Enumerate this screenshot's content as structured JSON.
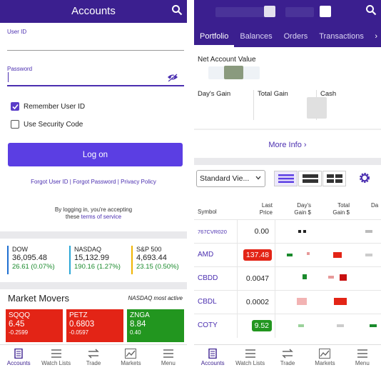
{
  "login_screen": {
    "title": "Accounts",
    "user_id_label": "User ID",
    "password_label": "Password",
    "remember_label": "Remember User ID",
    "remember_checked": true,
    "security_label": "Use Security Code",
    "security_checked": false,
    "login_button": "Log on",
    "forgot_user": "Forgot User ID",
    "forgot_password": "Forgot Password",
    "privacy_policy": "Privacy Policy",
    "link_sep": " | ",
    "terms_line1": "By logging in, you're accepting",
    "terms_prefix": "these ",
    "terms_link": "terms of service",
    "indices": [
      {
        "name": "DOW",
        "value": "36,095.48",
        "change": "26.61 (0.07%)",
        "color": "#1f6fd1"
      },
      {
        "name": "NASDAQ",
        "value": "15,132.99",
        "change": "190.16 (1.27%)",
        "color": "#2aa6d6"
      },
      {
        "name": "S&P 500",
        "value": "4,693.44",
        "change": "23.15 (0.50%)",
        "color": "#f0b400"
      }
    ],
    "market_movers_title": "Market Movers",
    "market_movers_sub": "NASDAQ most active",
    "movers": [
      {
        "symbol": "SQQQ",
        "price": "6.45",
        "change": "-0.2599",
        "color": "#e32416"
      },
      {
        "symbol": "PETZ",
        "price": "0.6803",
        "change": "-0.0597",
        "color": "#e32416"
      },
      {
        "symbol": "ZNGA",
        "price": "8.84",
        "change": "0.40",
        "color": "#22961f"
      }
    ]
  },
  "nav": [
    {
      "label": "Accounts",
      "icon": "accounts-icon"
    },
    {
      "label": "Watch Lists",
      "icon": "watch-lists-icon"
    },
    {
      "label": "Trade",
      "icon": "trade-icon"
    },
    {
      "label": "Markets",
      "icon": "markets-icon"
    },
    {
      "label": "Menu",
      "icon": "menu-icon"
    }
  ],
  "portfolio_screen": {
    "tabs": [
      "Portfolio",
      "Balances",
      "Orders",
      "Transactions"
    ],
    "active_tab": "Portfolio",
    "net_account_value_label": "Net Account Value",
    "days_gain_label": "Day's Gain",
    "total_gain_label": "Total Gain",
    "cash_label": "Cash",
    "more_info": "More Info",
    "view_select": "Standard Vie...",
    "table_headers": {
      "symbol": "Symbol",
      "last_price_1": "Last",
      "last_price_2": "Price",
      "days_gain_1": "Day's",
      "days_gain_2": "Gain $",
      "total_gain_1": "Total",
      "total_gain_2": "Gain $",
      "da": "Da"
    },
    "rows": [
      {
        "symbol": "767CVR020",
        "price": "0.00",
        "style": ""
      },
      {
        "symbol": "AMD",
        "price": "137.48",
        "style": "red"
      },
      {
        "symbol": "CBDD",
        "price": "0.0047",
        "style": ""
      },
      {
        "symbol": "CBDL",
        "price": "0.0002",
        "style": ""
      },
      {
        "symbol": "COTY",
        "price": "9.52",
        "style": "green"
      }
    ]
  },
  "colors": {
    "header_purple": "#3b1f8f",
    "accent_purple": "#5b3ee3",
    "gain_green": "#1a8a2c",
    "loss_red": "#e32416"
  }
}
